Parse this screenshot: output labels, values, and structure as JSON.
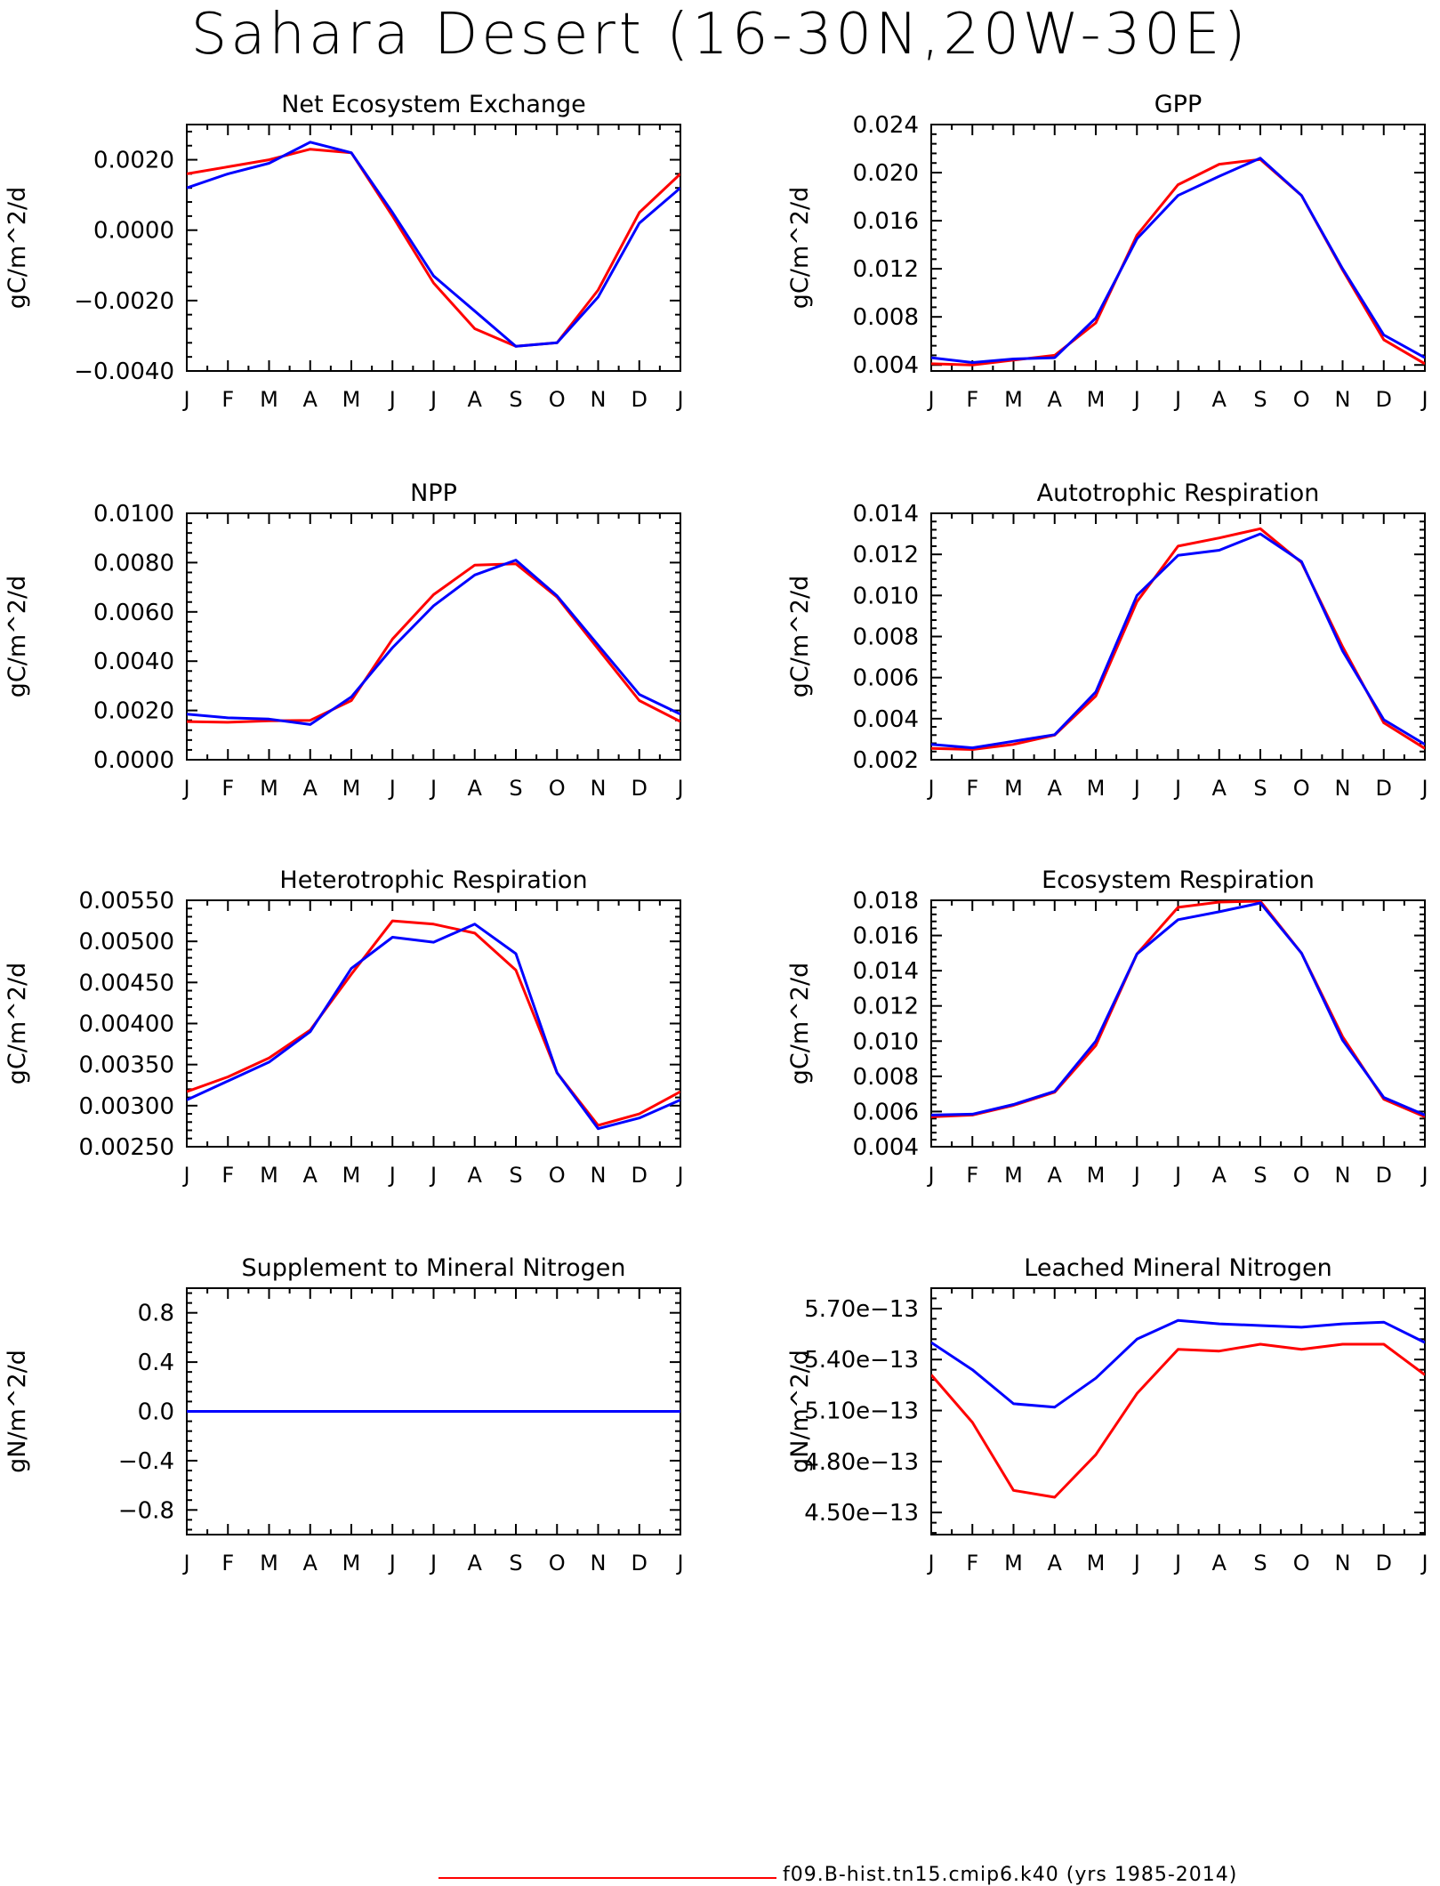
{
  "page": {
    "title": "Sahara Desert (16-30N,20W-30E)",
    "legend_label": "f09.B-hist.tn15.cmip6.k40 (yrs 1985-2014)",
    "colors": {
      "series_a": "#ff0000",
      "series_b": "#0000ff",
      "axes": "#000000"
    }
  },
  "chart_data": [
    {
      "type": "line",
      "title": "Net Ecosystem Exchange",
      "ylabel": "gC/m^2/d",
      "x": [
        "J",
        "F",
        "M",
        "A",
        "M",
        "J",
        "J",
        "A",
        "S",
        "O",
        "N",
        "D",
        "J"
      ],
      "ylim": [
        -0.004,
        0.003
      ],
      "yticks": [
        -0.004,
        -0.002,
        0.0,
        0.002
      ],
      "ytick_labels": [
        "−0.0040",
        "−0.0020",
        "0.0000",
        "0.0020"
      ],
      "series": [
        {
          "color": "#ff0000",
          "values": [
            0.0016,
            0.0018,
            0.002,
            0.0023,
            0.0022,
            0.0004,
            -0.0015,
            -0.0028,
            -0.0033,
            -0.0032,
            -0.0017,
            0.0005,
            0.0016
          ]
        },
        {
          "color": "#0000ff",
          "values": [
            0.0012,
            0.0016,
            0.0019,
            0.0025,
            0.0022,
            0.0005,
            -0.0013,
            -0.0023,
            -0.0033,
            -0.0032,
            -0.0019,
            0.0002,
            0.0012
          ]
        }
      ]
    },
    {
      "type": "line",
      "title": "GPP",
      "ylabel": "gC/m^2/d",
      "x": [
        "J",
        "F",
        "M",
        "A",
        "M",
        "J",
        "J",
        "A",
        "S",
        "O",
        "N",
        "D",
        "J"
      ],
      "ylim": [
        0.0035,
        0.024
      ],
      "yticks": [
        0.004,
        0.008,
        0.012,
        0.016,
        0.02,
        0.024
      ],
      "ytick_labels": [
        "0.004",
        "0.008",
        "0.012",
        "0.016",
        "0.020",
        "0.024"
      ],
      "series": [
        {
          "color": "#ff0000",
          "values": [
            0.0041,
            0.004,
            0.0044,
            0.0048,
            0.0075,
            0.0148,
            0.019,
            0.0207,
            0.0211,
            0.0181,
            0.0119,
            0.0061,
            0.0041
          ]
        },
        {
          "color": "#0000ff",
          "values": [
            0.0046,
            0.0042,
            0.0045,
            0.0046,
            0.0079,
            0.0145,
            0.0181,
            0.0197,
            0.0212,
            0.0181,
            0.012,
            0.0065,
            0.0046
          ]
        }
      ]
    },
    {
      "type": "line",
      "title": "NPP",
      "ylabel": "gC/m^2/d",
      "x": [
        "J",
        "F",
        "M",
        "A",
        "M",
        "J",
        "J",
        "A",
        "S",
        "O",
        "N",
        "D",
        "J"
      ],
      "ylim": [
        0.0,
        0.01
      ],
      "yticks": [
        0.0,
        0.002,
        0.004,
        0.006,
        0.008,
        0.01
      ],
      "ytick_labels": [
        "0.0000",
        "0.0020",
        "0.0040",
        "0.0060",
        "0.0080",
        "0.0100"
      ],
      "series": [
        {
          "color": "#ff0000",
          "values": [
            0.00155,
            0.00152,
            0.00158,
            0.0016,
            0.0024,
            0.0049,
            0.0067,
            0.0079,
            0.00795,
            0.0066,
            0.0045,
            0.0024,
            0.00155
          ]
        },
        {
          "color": "#0000ff",
          "values": [
            0.00185,
            0.0017,
            0.00165,
            0.00143,
            0.00255,
            0.00455,
            0.00625,
            0.0075,
            0.0081,
            0.00665,
            0.00465,
            0.00265,
            0.00185
          ]
        }
      ]
    },
    {
      "type": "line",
      "title": "Autotrophic Respiration",
      "ylabel": "gC/m^2/d",
      "x": [
        "J",
        "F",
        "M",
        "A",
        "M",
        "J",
        "J",
        "A",
        "S",
        "O",
        "N",
        "D",
        "J"
      ],
      "ylim": [
        0.002,
        0.014
      ],
      "yticks": [
        0.002,
        0.004,
        0.006,
        0.008,
        0.01,
        0.012,
        0.014
      ],
      "ytick_labels": [
        "0.002",
        "0.004",
        "0.006",
        "0.008",
        "0.010",
        "0.012",
        "0.014"
      ],
      "series": [
        {
          "color": "#ff0000",
          "values": [
            0.00255,
            0.0025,
            0.00275,
            0.0032,
            0.0051,
            0.0097,
            0.0124,
            0.0128,
            0.01325,
            0.0116,
            0.0075,
            0.0038,
            0.00255
          ]
        },
        {
          "color": "#0000ff",
          "values": [
            0.00275,
            0.00258,
            0.0029,
            0.00322,
            0.0053,
            0.01,
            0.01195,
            0.0122,
            0.013,
            0.01165,
            0.0073,
            0.00395,
            0.00275
          ]
        }
      ]
    },
    {
      "type": "line",
      "title": "Heterotrophic Respiration",
      "ylabel": "gC/m^2/d",
      "x": [
        "J",
        "F",
        "M",
        "A",
        "M",
        "J",
        "J",
        "A",
        "S",
        "O",
        "N",
        "D",
        "J"
      ],
      "ylim": [
        0.0025,
        0.0055
      ],
      "yticks": [
        0.0025,
        0.003,
        0.0035,
        0.004,
        0.0045,
        0.005,
        0.0055
      ],
      "ytick_labels": [
        "0.00250",
        "0.00300",
        "0.00350",
        "0.00400",
        "0.00450",
        "0.00500",
        "0.00550"
      ],
      "series": [
        {
          "color": "#ff0000",
          "values": [
            0.00317,
            0.00335,
            0.00358,
            0.00392,
            0.0046,
            0.00525,
            0.00521,
            0.0051,
            0.00465,
            0.0034,
            0.00276,
            0.0029,
            0.00317
          ]
        },
        {
          "color": "#0000ff",
          "values": [
            0.00307,
            0.0033,
            0.00353,
            0.0039,
            0.00467,
            0.00505,
            0.00499,
            0.00521,
            0.00485,
            0.0034,
            0.00272,
            0.00285,
            0.00307
          ]
        }
      ]
    },
    {
      "type": "line",
      "title": "Ecosystem Respiration",
      "ylabel": "gC/m^2/d",
      "x": [
        "J",
        "F",
        "M",
        "A",
        "M",
        "J",
        "J",
        "A",
        "S",
        "O",
        "N",
        "D",
        "J"
      ],
      "ylim": [
        0.004,
        0.018
      ],
      "yticks": [
        0.004,
        0.006,
        0.008,
        0.01,
        0.012,
        0.014,
        0.016,
        0.018
      ],
      "ytick_labels": [
        "0.004",
        "0.006",
        "0.008",
        "0.010",
        "0.012",
        "0.014",
        "0.016",
        "0.018"
      ],
      "series": [
        {
          "color": "#ff0000",
          "values": [
            0.0057,
            0.0058,
            0.00635,
            0.0071,
            0.00975,
            0.01495,
            0.0176,
            0.0179,
            0.01795,
            0.015,
            0.01025,
            0.0067,
            0.0057
          ]
        },
        {
          "color": "#0000ff",
          "values": [
            0.0058,
            0.00585,
            0.0064,
            0.00715,
            0.01,
            0.01495,
            0.0169,
            0.01735,
            0.01785,
            0.015,
            0.01005,
            0.0068,
            0.0058
          ]
        }
      ]
    },
    {
      "type": "line",
      "title": "Supplement to Mineral Nitrogen",
      "ylabel": "gN/m^2/d",
      "x": [
        "J",
        "F",
        "M",
        "A",
        "M",
        "J",
        "J",
        "A",
        "S",
        "O",
        "N",
        "D",
        "J"
      ],
      "ylim": [
        -1.0,
        1.0
      ],
      "yticks": [
        -0.8,
        -0.4,
        0.0,
        0.4,
        0.8
      ],
      "ytick_labels": [
        "−0.8",
        "−0.4",
        "0.0",
        "0.4",
        "0.8"
      ],
      "series": [
        {
          "color": "#ff0000",
          "values": [
            0,
            0,
            0,
            0,
            0,
            0,
            0,
            0,
            0,
            0,
            0,
            0,
            0
          ]
        },
        {
          "color": "#0000ff",
          "values": [
            0,
            0,
            0,
            0,
            0,
            0,
            0,
            0,
            0,
            0,
            0,
            0,
            0
          ]
        }
      ]
    },
    {
      "type": "line",
      "title": "Leached Mineral Nitrogen",
      "ylabel": "gN/m^2/d",
      "x": [
        "J",
        "F",
        "M",
        "A",
        "M",
        "J",
        "J",
        "A",
        "S",
        "O",
        "N",
        "D",
        "J"
      ],
      "ylim": [
        4.37e-13,
        5.82e-13
      ],
      "yticks": [
        4.5e-13,
        4.8e-13,
        5.1e-13,
        5.4e-13,
        5.7e-13
      ],
      "ytick_labels": [
        "4.50e−13",
        "4.80e−13",
        "5.10e−13",
        "5.40e−13",
        "5.70e−13"
      ],
      "series": [
        {
          "color": "#ff0000",
          "values": [
            5.31e-13,
            5.03e-13,
            4.63e-13,
            4.59e-13,
            4.84e-13,
            5.2e-13,
            5.46e-13,
            5.45e-13,
            5.49e-13,
            5.46e-13,
            5.49e-13,
            5.49e-13,
            5.31e-13
          ]
        },
        {
          "color": "#0000ff",
          "values": [
            5.5e-13,
            5.34e-13,
            5.14e-13,
            5.12e-13,
            5.29e-13,
            5.52e-13,
            5.63e-13,
            5.61e-13,
            5.6e-13,
            5.59e-13,
            5.61e-13,
            5.62e-13,
            5.5e-13
          ]
        }
      ]
    }
  ]
}
